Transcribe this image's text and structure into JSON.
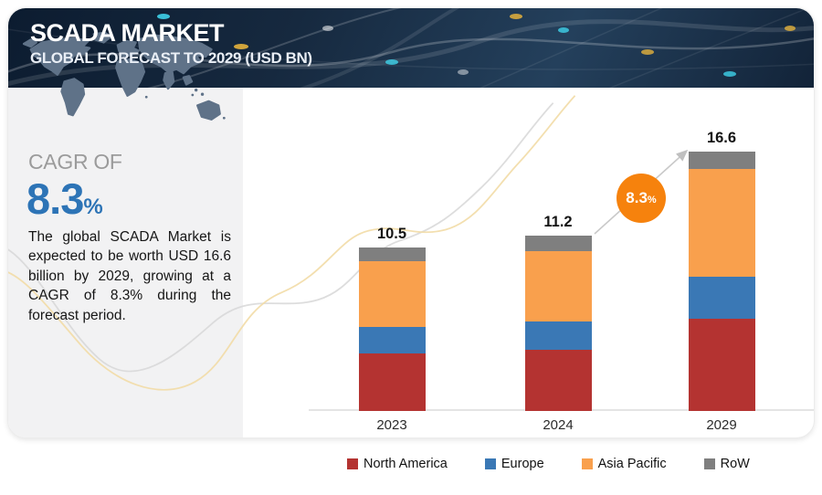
{
  "header": {
    "title": "SCADA MARKET",
    "subtitle": "GLOBAL FORECAST TO 2029 (USD BN)"
  },
  "sidebar": {
    "cagr_label": "CAGR OF",
    "cagr_value": "8.3",
    "cagr_unit": "%",
    "description": "The global SCADA Market is expected to be worth USD 16.6 billion by 2029, growing at a CAGR of 8.3% during the forecast period."
  },
  "badge": {
    "value": "8.3",
    "unit": "%",
    "color": "#f6820d"
  },
  "colors": {
    "accent_blue": "#2d74b6",
    "header_navy": "#16293f",
    "panel_gray": "#f2f2f3",
    "map_gray": "#5f7288"
  },
  "chart_data": {
    "type": "bar",
    "stacked": true,
    "title": "SCADA Market — Global Forecast to 2029 (USD BN)",
    "categories": [
      "2023",
      "2024",
      "2029"
    ],
    "series": [
      {
        "name": "North America",
        "color": "#b43331",
        "values": [
          3.7,
          3.9,
          5.9
        ]
      },
      {
        "name": "Europe",
        "color": "#3a78b5",
        "values": [
          1.7,
          1.8,
          2.7
        ]
      },
      {
        "name": "Asia Pacific",
        "color": "#f9a04d",
        "values": [
          4.2,
          4.5,
          6.9
        ]
      },
      {
        "name": "RoW",
        "color": "#7f7f7f",
        "values": [
          0.9,
          1.0,
          1.1
        ]
      }
    ],
    "totals": [
      "10.5",
      "11.2",
      "16.6"
    ],
    "ylabel": "USD BN",
    "ylim": [
      0,
      18
    ],
    "grid": false,
    "legend_position": "bottom",
    "annotation": {
      "text": "8.3%",
      "meaning": "CAGR from 2024 to 2029",
      "from": "2024",
      "to": "2029"
    }
  }
}
